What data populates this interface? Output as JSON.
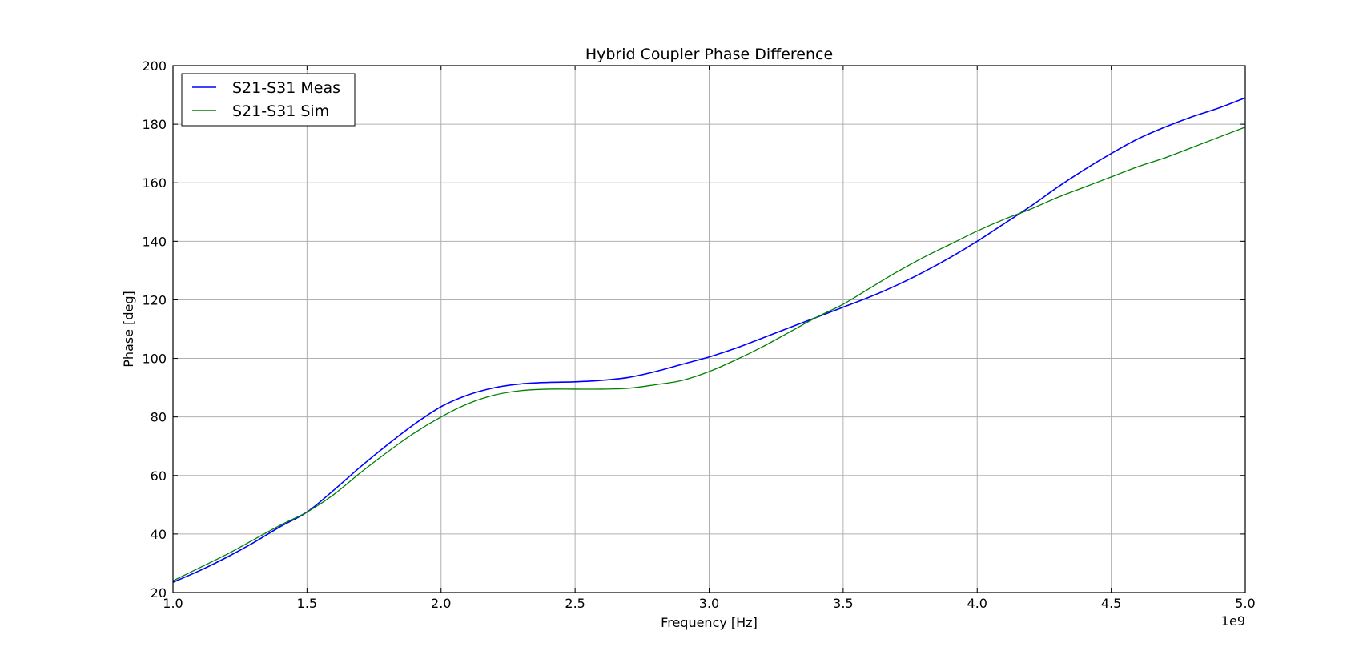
{
  "chart_data": {
    "type": "line",
    "title": "Hybrid Coupler Phase Difference",
    "xlabel": "Frequency [Hz]",
    "ylabel": "Phase [deg]",
    "x_offset_label": "1e9",
    "xlim": [
      1.0,
      5.0
    ],
    "ylim": [
      20,
      200
    ],
    "xticks": [
      "1.0",
      "1.5",
      "2.0",
      "2.5",
      "3.0",
      "3.5",
      "4.0",
      "4.5",
      "5.0"
    ],
    "yticks": [
      "20",
      "40",
      "60",
      "80",
      "100",
      "120",
      "140",
      "160",
      "180",
      "200"
    ],
    "grid": true,
    "legend_position": "upper-left",
    "series": [
      {
        "name": "S21-S31 Meas",
        "color": "#0000ff",
        "x": [
          1.0,
          1.1,
          1.2,
          1.3,
          1.4,
          1.5,
          1.6,
          1.7,
          1.8,
          1.9,
          2.0,
          2.1,
          2.2,
          2.3,
          2.4,
          2.5,
          2.6,
          2.7,
          2.8,
          2.9,
          3.0,
          3.1,
          3.2,
          3.3,
          3.4,
          3.5,
          3.6,
          3.7,
          3.8,
          3.9,
          4.0,
          4.1,
          4.2,
          4.3,
          4.4,
          4.5,
          4.6,
          4.7,
          4.8,
          4.9,
          5.0
        ],
        "y": [
          23.5,
          27.5,
          32.0,
          37.0,
          42.5,
          47.5,
          55.0,
          63.0,
          70.5,
          77.5,
          83.5,
          87.5,
          90.0,
          91.3,
          91.8,
          92.0,
          92.5,
          93.5,
          95.5,
          98.0,
          100.5,
          103.5,
          107.0,
          110.5,
          114.0,
          117.5,
          121.0,
          125.0,
          129.5,
          134.5,
          140.0,
          146.0,
          152.0,
          158.5,
          164.5,
          170.0,
          175.0,
          179.0,
          182.5,
          185.5,
          189.0
        ]
      },
      {
        "name": "S21-S31 Sim",
        "color": "#008000",
        "x": [
          1.0,
          1.1,
          1.2,
          1.3,
          1.4,
          1.5,
          1.6,
          1.7,
          1.8,
          1.9,
          2.0,
          2.1,
          2.2,
          2.3,
          2.4,
          2.5,
          2.6,
          2.7,
          2.8,
          2.9,
          3.0,
          3.1,
          3.2,
          3.3,
          3.4,
          3.5,
          3.6,
          3.7,
          3.8,
          3.9,
          4.0,
          4.1,
          4.2,
          4.3,
          4.4,
          4.5,
          4.6,
          4.7,
          4.8,
          4.9,
          5.0
        ],
        "y": [
          24.0,
          28.5,
          33.0,
          38.0,
          43.0,
          47.5,
          53.5,
          61.0,
          68.0,
          74.5,
          80.0,
          84.5,
          87.5,
          89.0,
          89.5,
          89.5,
          89.5,
          89.8,
          91.0,
          92.5,
          95.5,
          99.5,
          104.0,
          109.0,
          114.0,
          118.5,
          124.0,
          129.5,
          134.5,
          139.0,
          143.5,
          147.5,
          151.0,
          155.0,
          158.5,
          162.0,
          165.5,
          168.5,
          172.0,
          175.5,
          179.0
        ]
      }
    ]
  }
}
